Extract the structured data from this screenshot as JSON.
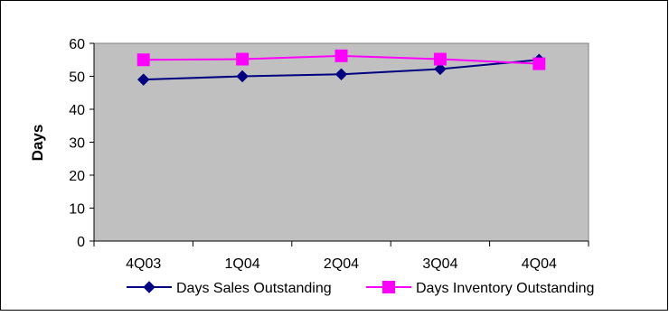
{
  "chart_data": {
    "type": "line",
    "title": "",
    "xlabel": "",
    "ylabel": "Days",
    "categories": [
      "4Q03",
      "1Q04",
      "2Q04",
      "3Q04",
      "4Q04"
    ],
    "ylim": [
      0,
      60
    ],
    "yticks": [
      0,
      10,
      20,
      30,
      40,
      50,
      60
    ],
    "grid": false,
    "legend_position": "bottom",
    "plot_background": "#c0c0c0",
    "series": [
      {
        "name": "Days Sales Outstanding",
        "values": [
          49,
          50,
          50.6,
          52.2,
          55
        ],
        "color": "#000080",
        "marker": "diamond"
      },
      {
        "name": "Days Inventory Outstanding",
        "values": [
          55,
          55.2,
          56.2,
          55.2,
          53.8
        ],
        "color": "#ff00ff",
        "marker": "square"
      }
    ]
  }
}
